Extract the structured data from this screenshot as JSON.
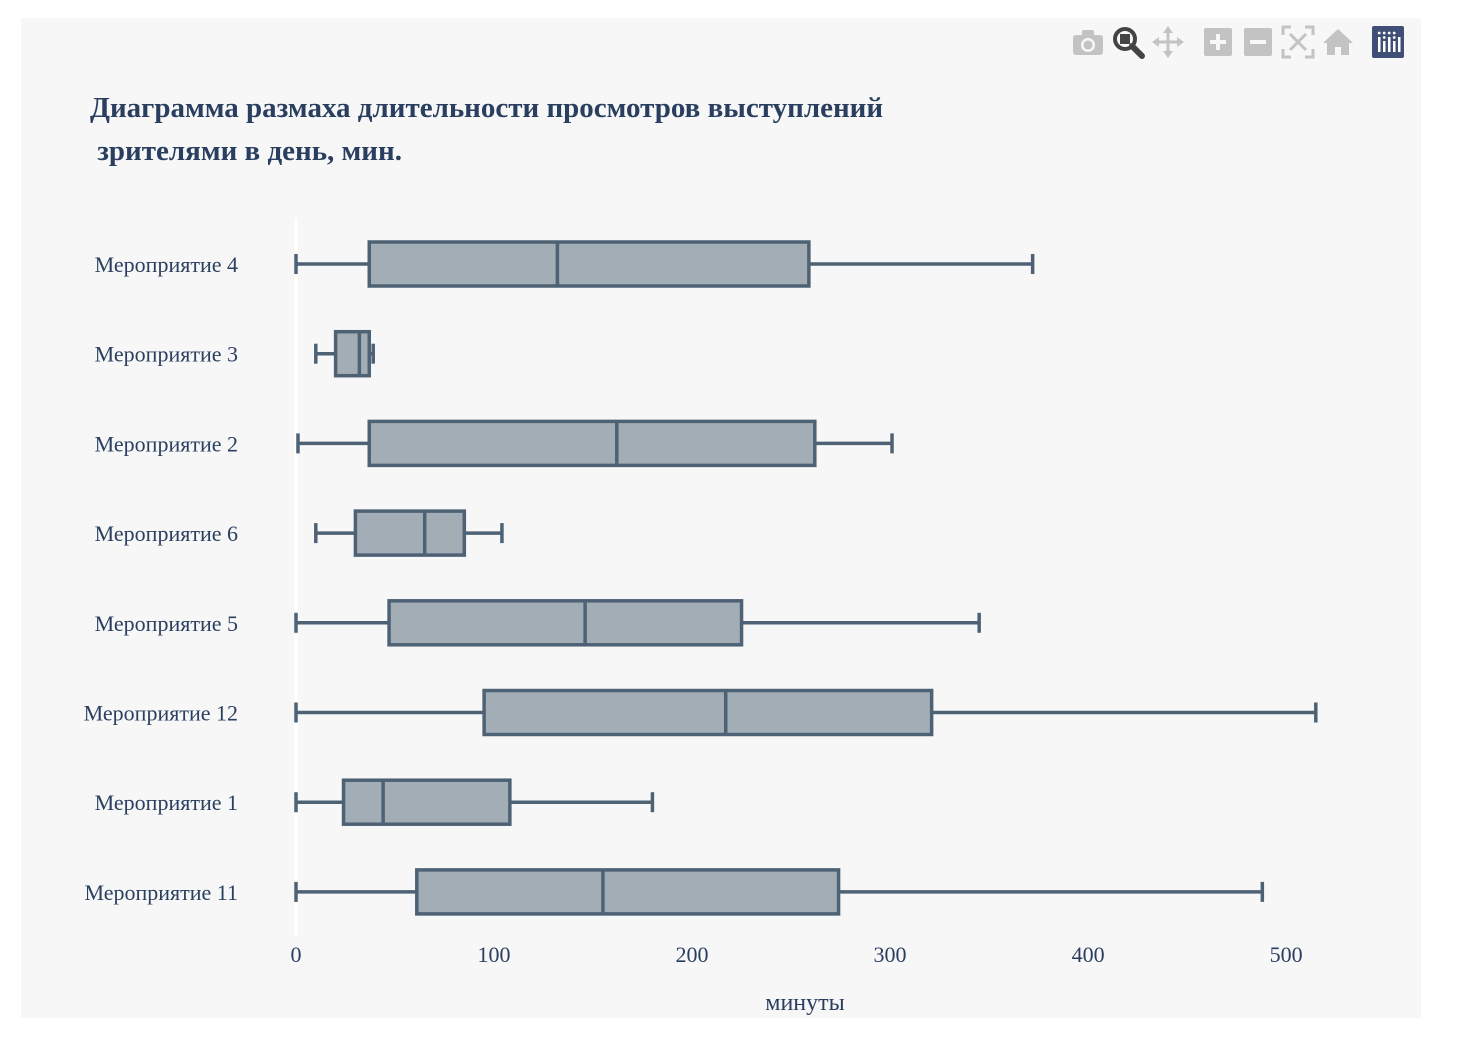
{
  "toolbar": {
    "items": [
      {
        "icon": "camera-icon",
        "label": "Download plot as a png"
      },
      {
        "icon": "zoom-icon",
        "label": "Zoom",
        "active": true
      },
      {
        "icon": "pan-icon",
        "label": "Pan"
      },
      {
        "icon": "zoom-in-icon",
        "label": "Zoom in"
      },
      {
        "icon": "zoom-out-icon",
        "label": "Zoom out"
      },
      {
        "icon": "autoscale-icon",
        "label": "Autoscale"
      },
      {
        "icon": "reset-axes-icon",
        "label": "Reset axes"
      },
      {
        "icon": "plotly-logo-icon",
        "label": "Produced with Plotly"
      }
    ]
  },
  "colors": {
    "box_fill": "#a3adb5",
    "box_line": "#4e6275",
    "background": "#f7f7f7",
    "text": "#2a3f5f",
    "toolbar_icon": "#c3c3c3",
    "toolbar_active": "#444444",
    "logo_bg": "#3f4f75"
  },
  "chart_data": {
    "type": "box",
    "orientation": "horizontal",
    "title_lines": [
      "Диаграмма размаха длительности просмотров выступлений",
      " зрителями в день, мин."
    ],
    "xlabel": "минуты",
    "ylabel": "",
    "xlim": [
      -8,
      532
    ],
    "xticks": [
      0,
      100,
      200,
      300,
      400,
      500
    ],
    "xtick_labels": [
      "0",
      "100",
      "200",
      "300",
      "400",
      "500"
    ],
    "grid": false,
    "legend": "none",
    "series": [
      {
        "category": "Мероприятие 4",
        "min": 0,
        "q1": 37,
        "median": 132,
        "q3": 259,
        "max": 372
      },
      {
        "category": "Мероприятие 3",
        "min": 10,
        "q1": 20,
        "median": 32,
        "q3": 37,
        "max": 39
      },
      {
        "category": "Мероприятие 2",
        "min": 1,
        "q1": 37,
        "median": 162,
        "q3": 262,
        "max": 301
      },
      {
        "category": "Мероприятие 6",
        "min": 10,
        "q1": 30,
        "median": 65,
        "q3": 85,
        "max": 104
      },
      {
        "category": "Мероприятие 5",
        "min": 0,
        "q1": 47,
        "median": 146,
        "q3": 225,
        "max": 345
      },
      {
        "category": "Мероприятие 12",
        "min": 0,
        "q1": 95,
        "median": 217,
        "q3": 321,
        "max": 515
      },
      {
        "category": "Мероприятие 1",
        "min": 0,
        "q1": 24,
        "median": 44,
        "q3": 108,
        "max": 180
      },
      {
        "category": "Мероприятие 11",
        "min": 0,
        "q1": 61,
        "median": 155,
        "q3": 274,
        "max": 488
      }
    ]
  }
}
